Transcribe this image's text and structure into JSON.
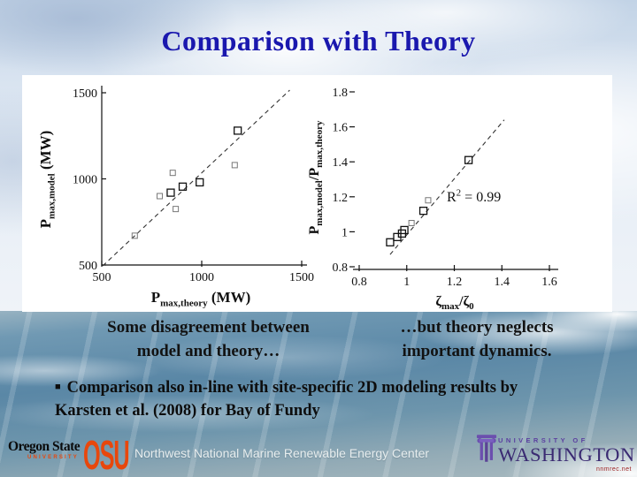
{
  "slide": {
    "title": "Comparison with Theory",
    "captions": {
      "left": [
        "Some disagreement between",
        "model and theory…"
      ],
      "right": [
        "…but theory neglects",
        "important dynamics."
      ]
    },
    "bullet": {
      "marker": "■",
      "lines": [
        "Comparison also in-line with site-specific 2D modeling results by",
        "Karsten et al. (2008) for Bay of Fundy"
      ]
    }
  },
  "footer": {
    "oregon_state": {
      "line1": "Oregon State",
      "line2": "UNIVERSITY"
    },
    "osu_acronym": "OSU",
    "center_text": "Northwest National Marine Renewable Energy Center",
    "uw": {
      "line1": "UNIVERSITY OF",
      "line2": "WASHINGTON"
    },
    "fine_print": "nnmrec.net"
  },
  "colors": {
    "title_blue": "#1a18ae",
    "osu_orange": "#e8470c",
    "uw_purple": "#4b3390",
    "plot_ink": "#111111",
    "panel_white": "#ffffff"
  },
  "chart_data": [
    {
      "type": "scatter",
      "title": "",
      "xlabel": "P_max,theory (MW)",
      "ylabel": "P_max,model (MW)",
      "xlabel_parts": [
        {
          "t": "P"
        },
        {
          "t": "max,theory",
          "sub": true
        },
        {
          "t": " (MW)"
        }
      ],
      "ylabel_parts": [
        {
          "t": "P"
        },
        {
          "t": "max,model",
          "sub": true
        },
        {
          "t": " (MW)"
        }
      ],
      "xlim": [
        500,
        1500
      ],
      "ylim": [
        500,
        1500
      ],
      "xticks": [
        500,
        1000,
        1500
      ],
      "yticks": [
        500,
        1000,
        1500
      ],
      "grid": false,
      "legend": null,
      "marker": "open-square",
      "line": {
        "style": "dashed",
        "meaning": "model vs theory reference/fit",
        "x": [
          505,
          1440
        ],
        "y": [
          495,
          1515
        ]
      },
      "points": [
        {
          "x": 665,
          "y": 670,
          "style": "faint"
        },
        {
          "x": 790,
          "y": 900,
          "style": "faint"
        },
        {
          "x": 845,
          "y": 920
        },
        {
          "x": 870,
          "y": 825,
          "style": "faint"
        },
        {
          "x": 905,
          "y": 955
        },
        {
          "x": 855,
          "y": 1035,
          "style": "faint"
        },
        {
          "x": 990,
          "y": 980
        },
        {
          "x": 1165,
          "y": 1080,
          "style": "faint"
        },
        {
          "x": 1180,
          "y": 1280
        }
      ]
    },
    {
      "type": "scatter",
      "title": "",
      "xlabel": "ζ_max/ζ_0",
      "ylabel": "P_max,model/P_max,theory",
      "xlabel_parts": [
        {
          "t": "ζ"
        },
        {
          "t": "max",
          "sub": true
        },
        {
          "t": "/ζ"
        },
        {
          "t": "0",
          "sub": true
        }
      ],
      "ylabel_parts": [
        {
          "t": "P"
        },
        {
          "t": "max,model",
          "sub": true
        },
        {
          "t": "/P"
        },
        {
          "t": "max,theory",
          "sub": true
        }
      ],
      "xlim": [
        0.8,
        1.6
      ],
      "ylim": [
        0.8,
        1.8
      ],
      "xticks": [
        0.8,
        1,
        1.2,
        1.4,
        1.6
      ],
      "yticks": [
        0.8,
        1,
        1.2,
        1.4,
        1.6,
        1.8
      ],
      "grid": false,
      "legend": null,
      "marker": "open-square",
      "annotation": "R² = 0.99",
      "annotation_parts": [
        {
          "t": "R"
        },
        {
          "t": "2",
          "sup": true
        },
        {
          "t": " = 0.99"
        }
      ],
      "line": {
        "style": "dashed",
        "meaning": "linear fit",
        "x": [
          0.93,
          1.41
        ],
        "y": [
          0.87,
          1.64
        ]
      },
      "points": [
        {
          "x": 0.93,
          "y": 0.94
        },
        {
          "x": 0.96,
          "y": 0.97
        },
        {
          "x": 0.98,
          "y": 0.99
        },
        {
          "x": 0.99,
          "y": 1.01
        },
        {
          "x": 1.02,
          "y": 1.05,
          "style": "faint"
        },
        {
          "x": 1.07,
          "y": 1.12
        },
        {
          "x": 1.09,
          "y": 1.18,
          "style": "faint"
        },
        {
          "x": 1.26,
          "y": 1.41
        }
      ]
    }
  ]
}
